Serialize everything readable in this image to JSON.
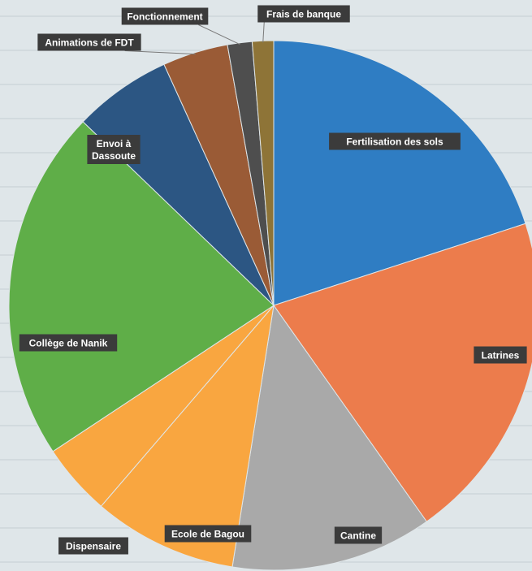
{
  "chart_data": {
    "type": "pie",
    "title": "",
    "slices": [
      {
        "label": "Fertilisation des sols",
        "value": 20.0,
        "color": "#2f7dc3"
      },
      {
        "label": "Latrines",
        "value": 20.2,
        "color": "#ec7c4c"
      },
      {
        "label": "Cantine",
        "value": 12.3,
        "color": "#a9a9a9"
      },
      {
        "label": "Ecole de Bagou",
        "value": 8.8,
        "color": "#f9a640"
      },
      {
        "label": "Dispensaire",
        "value": 4.4,
        "color": "#f9a640"
      },
      {
        "label": "Collège de Nanik",
        "value": 21.5,
        "color": "#5fae48"
      },
      {
        "label": "Envoi à\nDassoute",
        "value": 6.0,
        "color": "#2c5683"
      },
      {
        "label": "Animations de FDT",
        "value": 4.0,
        "color": "#9a5b36"
      },
      {
        "label": "Fonctionnement",
        "value": 1.5,
        "color": "#4e4e4e"
      },
      {
        "label": "Frais de banque",
        "value": 1.3,
        "color": "#8e7437"
      }
    ]
  }
}
